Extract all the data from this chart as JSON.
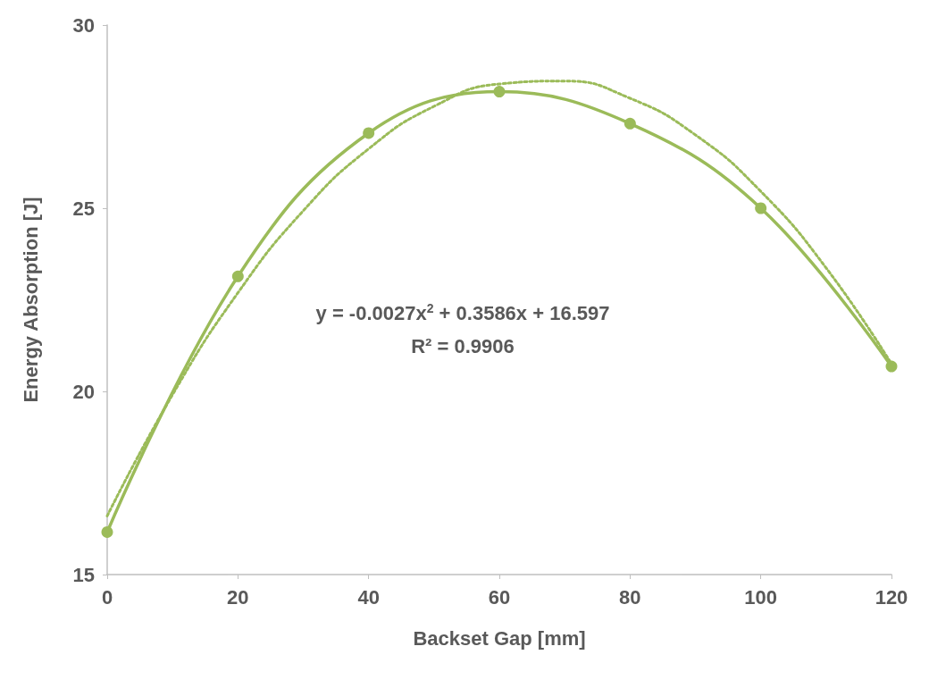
{
  "chart_data": {
    "type": "line",
    "xlabel": "Backset Gap [mm]",
    "ylabel": "Energy Absorption [J]",
    "x": [
      0,
      20,
      40,
      60,
      80,
      100,
      120
    ],
    "xlim": [
      0,
      120
    ],
    "xticks": [
      0,
      20,
      40,
      60,
      80,
      100,
      120
    ],
    "ylim": [
      15,
      30
    ],
    "yticks": [
      15,
      20,
      25,
      30
    ],
    "grid": false,
    "series": [
      {
        "color": "#9bbb59",
        "marker": "circle",
        "line_style": "solid",
        "values": [
          16.16,
          23.14,
          27.05,
          28.18,
          27.31,
          25.0,
          20.68
        ]
      },
      {
        "type": "line",
        "color": "#9bbb59",
        "marker": "none",
        "line_style": "dotted",
        "x": [
          0,
          10,
          20,
          30,
          40,
          50,
          60,
          70,
          80,
          90,
          100,
          110,
          120
        ],
        "values": [
          16.6,
          19.91,
          22.69,
          24.93,
          26.62,
          27.78,
          28.39,
          28.47,
          28.0,
          27.0,
          25.46,
          23.37,
          20.75
        ]
      }
    ],
    "annotations": [
      "y = -0.0027x$^{2}$ + 0.3586x + 16.597",
      "R² = 0.9906"
    ]
  }
}
